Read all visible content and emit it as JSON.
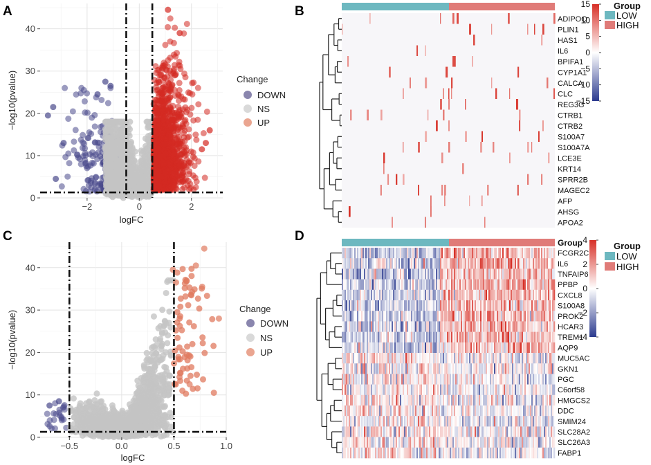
{
  "figure": {
    "panels": [
      {
        "id": "A",
        "letter": "A"
      },
      {
        "id": "B",
        "letter": "B"
      },
      {
        "id": "C",
        "letter": "C"
      },
      {
        "id": "D",
        "letter": "D"
      }
    ]
  },
  "colors": {
    "down": "#4a4a8c",
    "ns": "#c4c4c4",
    "up_A": "#d42a22",
    "up_C": "#e07a5f",
    "low": "#6db8c0",
    "high": "#e07b78",
    "hm_high": "#d73027",
    "hm_low": "#2b3a8f",
    "hm_mid": "#ffffff",
    "panel_bg": "#ffffff",
    "grid": "#e6e6e6"
  },
  "chart_data": [
    {
      "panel": "A",
      "type": "scatter",
      "title": "",
      "xlabel": "logFC",
      "ylabel": "−log10(pvalue)",
      "xlim": [
        -3.8,
        3.2
      ],
      "ylim": [
        0,
        46
      ],
      "xticks": [
        -2,
        0,
        2
      ],
      "xtick_labels": [
        "−2",
        "0",
        "2"
      ],
      "yticks": [
        0,
        10,
        20,
        30,
        40
      ],
      "ytick_labels": [
        "0",
        "10",
        "20",
        "30",
        "40"
      ],
      "vlines": [
        -0.5,
        0.5
      ],
      "hline": 1.3,
      "legend": {
        "title": "Change",
        "items": [
          "DOWN",
          "NS",
          "UP"
        ]
      },
      "series": [
        {
          "name": "DOWN",
          "count": 330,
          "x_range": [
            -3.6,
            -0.5
          ],
          "y_max": 27
        },
        {
          "name": "NS",
          "count": 1400,
          "x_range": [
            -1.3,
            0.5
          ],
          "y_max": 18
        },
        {
          "name": "UP",
          "count": 1500,
          "x_range": [
            0.5,
            2.9
          ],
          "y_max": 44.5
        }
      ],
      "highlight_points": [
        {
          "x": -3.3,
          "y": 21.5
        },
        {
          "x": -3.5,
          "y": 19.5
        },
        {
          "x": -3.2,
          "y": 4.5
        },
        {
          "x": -2.9,
          "y": 13
        },
        {
          "x": -1.3,
          "y": 27.5
        },
        {
          "x": -1.1,
          "y": 26.5
        },
        {
          "x": -1.6,
          "y": 24.5
        },
        {
          "x": 1.1,
          "y": 44.5
        },
        {
          "x": 1.55,
          "y": 39
        },
        {
          "x": 2.7,
          "y": 16
        },
        {
          "x": 2.55,
          "y": 13
        },
        {
          "x": 2.4,
          "y": 11.5
        }
      ]
    },
    {
      "panel": "B",
      "type": "heatmap",
      "genes": [
        "ADIPOQ",
        "PLIN1",
        "HAS1",
        "IL6",
        "BPIFA1",
        "CYP1A1",
        "CALCA",
        "CLC",
        "REG3G",
        "CTRB1",
        "CTRB2",
        "S100A7",
        "S100A7A",
        "LCE3E",
        "KRT14",
        "SPRR2B",
        "MAGEC2",
        "AFP",
        "AHSG",
        "APOA2"
      ],
      "color_scale": {
        "title": "",
        "min": -15,
        "max": 15,
        "ticks": [
          15,
          10,
          5,
          0,
          -5,
          -10,
          -15
        ],
        "tick_labels": [
          "15",
          "10",
          "5",
          "0",
          "−5",
          "−10",
          "−15"
        ]
      },
      "group_legend": {
        "title": "Group",
        "items": [
          "LOW",
          "HIGH"
        ]
      },
      "annotation_label": "",
      "low_fraction": 0.54
    },
    {
      "panel": "C",
      "type": "scatter",
      "title": "",
      "xlabel": "logFC",
      "ylabel": "−log10(pvalue)",
      "xlim": [
        -0.78,
        1.0
      ],
      "ylim": [
        0,
        46
      ],
      "xticks": [
        -0.5,
        0.0,
        0.5,
        1.0
      ],
      "xtick_labels": [
        "−0.5",
        "0.0",
        "0.5",
        "1.0"
      ],
      "yticks": [
        0,
        10,
        20,
        30,
        40
      ],
      "ytick_labels": [
        "0",
        "10",
        "20",
        "30",
        "40"
      ],
      "vlines": [
        -0.5,
        0.5
      ],
      "hline": 1.3,
      "legend": {
        "title": "Change",
        "items": [
          "DOWN",
          "NS",
          "UP"
        ]
      },
      "series": [
        {
          "name": "DOWN",
          "count": 22,
          "x_range": [
            -0.72,
            -0.5
          ],
          "y_max": 9
        },
        {
          "name": "NS",
          "count": 2600,
          "x_range": [
            -0.5,
            0.5
          ],
          "y_max": 37
        },
        {
          "name": "UP",
          "count": 70,
          "x_range": [
            0.5,
            0.95
          ],
          "y_max": 44.5
        }
      ],
      "highlight_points": [
        {
          "x": 0.79,
          "y": 44.5
        },
        {
          "x": 0.71,
          "y": 40.5
        },
        {
          "x": 0.49,
          "y": 39.5
        },
        {
          "x": 0.93,
          "y": 28
        },
        {
          "x": 0.77,
          "y": 35.5
        },
        {
          "x": 0.52,
          "y": 36.5
        },
        {
          "x": -0.69,
          "y": 7.5
        },
        {
          "x": -0.6,
          "y": 8.5
        },
        {
          "x": 0.65,
          "y": 12.5
        }
      ]
    },
    {
      "panel": "D",
      "type": "heatmap",
      "genes": [
        "FCGR2C",
        "IL6",
        "TNFAIP6",
        "PPBP",
        "CXCL8",
        "S100A8",
        "PROK2",
        "HCAR3",
        "TREM1",
        "AQP9",
        "MUC5AC",
        "GKN1",
        "PGC",
        "C6orf58",
        "HMGCS2",
        "DDC",
        "SMIM24",
        "SLC28A2",
        "SLC26A3",
        "FABP1"
      ],
      "color_scale": {
        "title": "Group",
        "min": -4,
        "max": 4,
        "ticks": [
          4,
          2,
          0,
          -2,
          -4
        ],
        "tick_labels": [
          "4",
          "2",
          "0",
          "−2",
          "−4"
        ]
      },
      "group_legend": {
        "title": "Group",
        "items": [
          "LOW",
          "HIGH"
        ]
      },
      "annotation_label": "Group",
      "low_fraction": 0.46,
      "up_in_high_genes": 10
    }
  ]
}
